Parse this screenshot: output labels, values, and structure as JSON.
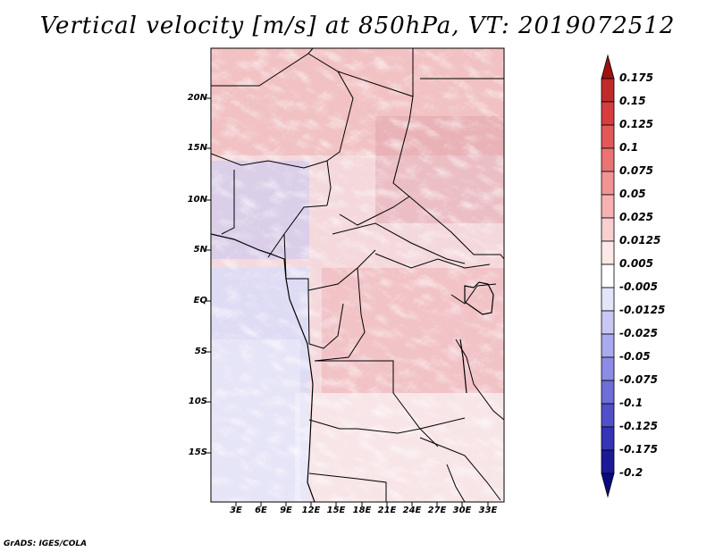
{
  "title": "Vertical velocity [m/s] at 850hPa, VT: 2019072512",
  "credit": "GrADS: IGES/COLA",
  "latitude_labels": [
    "20N",
    "15N",
    "10N",
    "5N",
    "EQ",
    "5S",
    "10S",
    "15S"
  ],
  "longitude_labels": [
    "3E",
    "6E",
    "9E",
    "12E",
    "15E",
    "18E",
    "21E",
    "24E",
    "27E",
    "30E",
    "33E"
  ],
  "colorbar": {
    "labels": [
      "0.175",
      "0.15",
      "0.125",
      "0.1",
      "0.075",
      "0.05",
      "0.025",
      "0.0125",
      "0.005",
      "-0.005",
      "-0.0125",
      "-0.025",
      "-0.05",
      "-0.075",
      "-0.1",
      "-0.125",
      "-0.175",
      "-0.2"
    ],
    "colors": [
      "#a01010",
      "#c02a2a",
      "#d63e3e",
      "#e25858",
      "#ea7474",
      "#f29494",
      "#f6b2b2",
      "#f9cfcf",
      "#fde8e8",
      "#ffffff",
      "#e4e4fa",
      "#c8c8f4",
      "#aaaaee",
      "#8c8ce4",
      "#6e6ed8",
      "#5050c8",
      "#3434b4",
      "#1a1a98",
      "#0a0a80"
    ]
  }
}
